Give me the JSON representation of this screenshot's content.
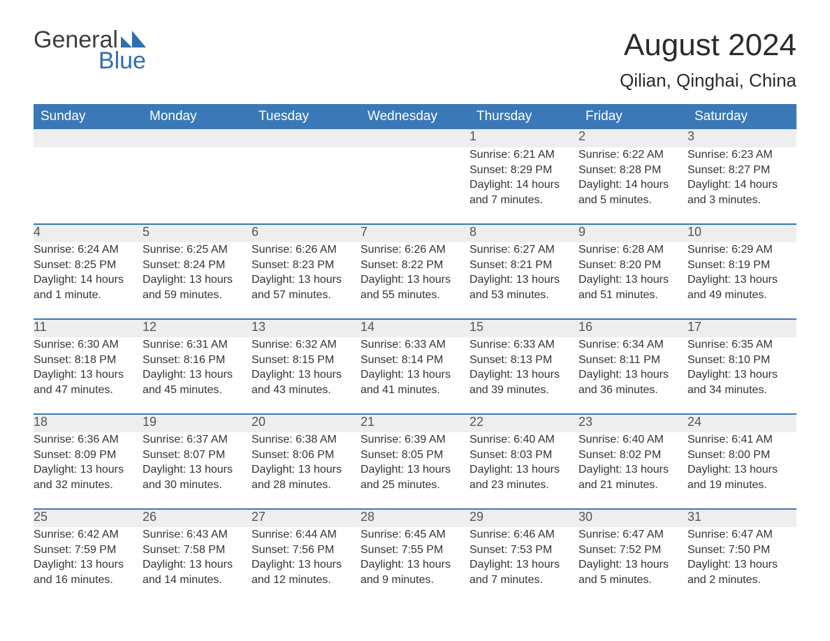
{
  "brand": {
    "word1": "General",
    "word2": "Blue",
    "word1_color": "#3d3d3d",
    "word2_color": "#2f6fb0",
    "mark_color": "#2f6fb0"
  },
  "title": "August 2024",
  "location": "Qilian, Qinghai, China",
  "colors": {
    "header_bg": "#3b78b8",
    "header_text": "#ffffff",
    "daynum_bg": "#eeeeee",
    "daynum_text": "#555555",
    "body_text": "#333333",
    "week_border": "#3b78b8",
    "page_bg": "#ffffff"
  },
  "weekday_labels": [
    "Sunday",
    "Monday",
    "Tuesday",
    "Wednesday",
    "Thursday",
    "Friday",
    "Saturday"
  ],
  "weeks": [
    [
      null,
      null,
      null,
      null,
      {
        "n": "1",
        "sunrise": "6:21 AM",
        "sunset": "8:29 PM",
        "daylight": "14 hours and 7 minutes."
      },
      {
        "n": "2",
        "sunrise": "6:22 AM",
        "sunset": "8:28 PM",
        "daylight": "14 hours and 5 minutes."
      },
      {
        "n": "3",
        "sunrise": "6:23 AM",
        "sunset": "8:27 PM",
        "daylight": "14 hours and 3 minutes."
      }
    ],
    [
      {
        "n": "4",
        "sunrise": "6:24 AM",
        "sunset": "8:25 PM",
        "daylight": "14 hours and 1 minute."
      },
      {
        "n": "5",
        "sunrise": "6:25 AM",
        "sunset": "8:24 PM",
        "daylight": "13 hours and 59 minutes."
      },
      {
        "n": "6",
        "sunrise": "6:26 AM",
        "sunset": "8:23 PM",
        "daylight": "13 hours and 57 minutes."
      },
      {
        "n": "7",
        "sunrise": "6:26 AM",
        "sunset": "8:22 PM",
        "daylight": "13 hours and 55 minutes."
      },
      {
        "n": "8",
        "sunrise": "6:27 AM",
        "sunset": "8:21 PM",
        "daylight": "13 hours and 53 minutes."
      },
      {
        "n": "9",
        "sunrise": "6:28 AM",
        "sunset": "8:20 PM",
        "daylight": "13 hours and 51 minutes."
      },
      {
        "n": "10",
        "sunrise": "6:29 AM",
        "sunset": "8:19 PM",
        "daylight": "13 hours and 49 minutes."
      }
    ],
    [
      {
        "n": "11",
        "sunrise": "6:30 AM",
        "sunset": "8:18 PM",
        "daylight": "13 hours and 47 minutes."
      },
      {
        "n": "12",
        "sunrise": "6:31 AM",
        "sunset": "8:16 PM",
        "daylight": "13 hours and 45 minutes."
      },
      {
        "n": "13",
        "sunrise": "6:32 AM",
        "sunset": "8:15 PM",
        "daylight": "13 hours and 43 minutes."
      },
      {
        "n": "14",
        "sunrise": "6:33 AM",
        "sunset": "8:14 PM",
        "daylight": "13 hours and 41 minutes."
      },
      {
        "n": "15",
        "sunrise": "6:33 AM",
        "sunset": "8:13 PM",
        "daylight": "13 hours and 39 minutes."
      },
      {
        "n": "16",
        "sunrise": "6:34 AM",
        "sunset": "8:11 PM",
        "daylight": "13 hours and 36 minutes."
      },
      {
        "n": "17",
        "sunrise": "6:35 AM",
        "sunset": "8:10 PM",
        "daylight": "13 hours and 34 minutes."
      }
    ],
    [
      {
        "n": "18",
        "sunrise": "6:36 AM",
        "sunset": "8:09 PM",
        "daylight": "13 hours and 32 minutes."
      },
      {
        "n": "19",
        "sunrise": "6:37 AM",
        "sunset": "8:07 PM",
        "daylight": "13 hours and 30 minutes."
      },
      {
        "n": "20",
        "sunrise": "6:38 AM",
        "sunset": "8:06 PM",
        "daylight": "13 hours and 28 minutes."
      },
      {
        "n": "21",
        "sunrise": "6:39 AM",
        "sunset": "8:05 PM",
        "daylight": "13 hours and 25 minutes."
      },
      {
        "n": "22",
        "sunrise": "6:40 AM",
        "sunset": "8:03 PM",
        "daylight": "13 hours and 23 minutes."
      },
      {
        "n": "23",
        "sunrise": "6:40 AM",
        "sunset": "8:02 PM",
        "daylight": "13 hours and 21 minutes."
      },
      {
        "n": "24",
        "sunrise": "6:41 AM",
        "sunset": "8:00 PM",
        "daylight": "13 hours and 19 minutes."
      }
    ],
    [
      {
        "n": "25",
        "sunrise": "6:42 AM",
        "sunset": "7:59 PM",
        "daylight": "13 hours and 16 minutes."
      },
      {
        "n": "26",
        "sunrise": "6:43 AM",
        "sunset": "7:58 PM",
        "daylight": "13 hours and 14 minutes."
      },
      {
        "n": "27",
        "sunrise": "6:44 AM",
        "sunset": "7:56 PM",
        "daylight": "13 hours and 12 minutes."
      },
      {
        "n": "28",
        "sunrise": "6:45 AM",
        "sunset": "7:55 PM",
        "daylight": "13 hours and 9 minutes."
      },
      {
        "n": "29",
        "sunrise": "6:46 AM",
        "sunset": "7:53 PM",
        "daylight": "13 hours and 7 minutes."
      },
      {
        "n": "30",
        "sunrise": "6:47 AM",
        "sunset": "7:52 PM",
        "daylight": "13 hours and 5 minutes."
      },
      {
        "n": "31",
        "sunrise": "6:47 AM",
        "sunset": "7:50 PM",
        "daylight": "13 hours and 2 minutes."
      }
    ]
  ],
  "labels": {
    "sunrise_prefix": "Sunrise: ",
    "sunset_prefix": "Sunset: ",
    "daylight_prefix": "Daylight: "
  }
}
